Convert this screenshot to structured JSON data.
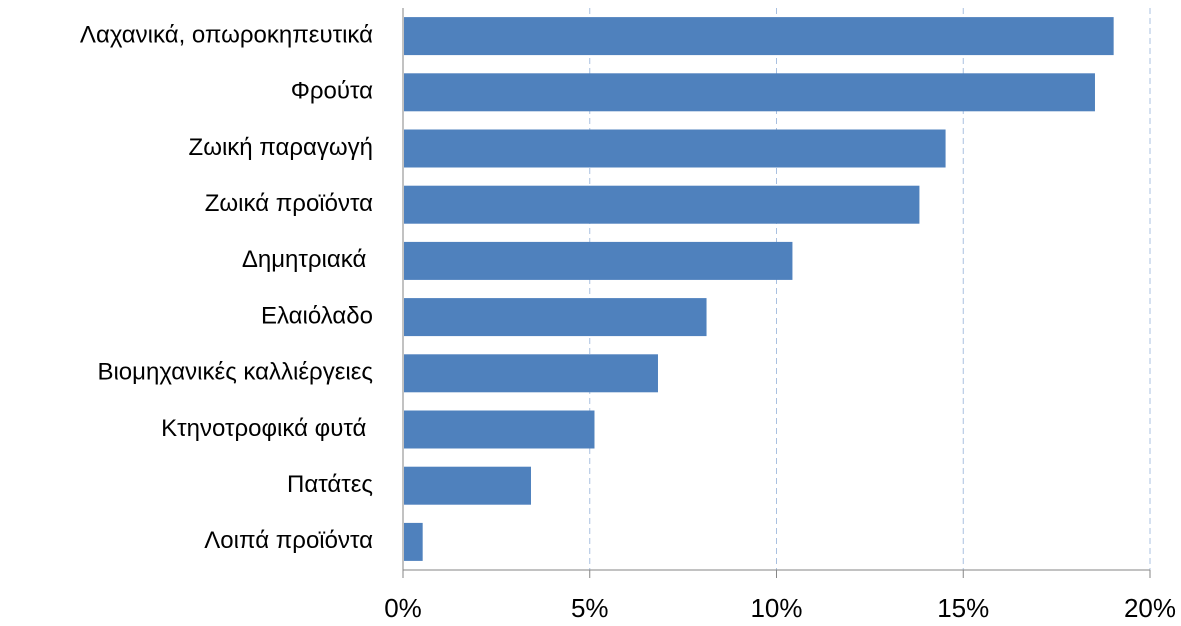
{
  "chart_data": {
    "type": "bar",
    "orientation": "horizontal",
    "categories": [
      "Λαχανικά, οπωροκηπευτικά",
      "Φρούτα",
      "Ζωική παραγωγή",
      "Ζωικά προϊόντα",
      "Δημητριακά ",
      "Ελαιόλαδο",
      "Βιομηχανικές καλλιέργειες",
      "Κτηνοτροφικά φυτά ",
      "Πατάτες",
      "Λοιπά προϊόντα"
    ],
    "values": [
      19.0,
      18.5,
      14.5,
      13.8,
      10.4,
      8.1,
      6.8,
      5.1,
      3.4,
      0.5
    ],
    "color": "#4f81bd",
    "xlim": [
      0,
      20
    ],
    "xticks": [
      {
        "value": 0,
        "label": "0%"
      },
      {
        "value": 5,
        "label": "5%"
      },
      {
        "value": 10,
        "label": "10%"
      },
      {
        "value": 15,
        "label": "15%"
      },
      {
        "value": 20,
        "label": "20%"
      }
    ],
    "grid": true
  }
}
